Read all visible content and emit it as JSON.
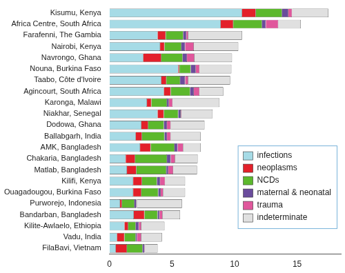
{
  "chart_data": {
    "type": "bar",
    "orientation": "horizontal",
    "stacked": true,
    "grid": false,
    "legend": "right",
    "categories": [
      "Kisumu, Kenya",
      "Africa Centre, South Africa",
      "Farafenni, The Gambia",
      "Nairobi, Kenya",
      "Navrongo, Ghana",
      "Nouna, Burkina Faso",
      "Taabo, Côte d'Ivoire",
      "Agincourt, South Africa",
      "Karonga, Malawi",
      "Niakhar, Senegal",
      "Dodowa, Ghana",
      "Ballabgarh, India",
      "AMK, Bangladesh",
      "Chakaria, Bangladesh",
      "Matlab, Bangladesh",
      "Kilifi, Kenya",
      "Ouagadougou, Burkina Faso",
      "Purworejo, Indonesia",
      "Bandarban, Bangladesh",
      "Kilite-Awlaelo, Ethiopia",
      "Vadu, India",
      "FilaBavi, Vietnam"
    ],
    "series": [
      {
        "name": "infections",
        "color": "#a6dbe6",
        "values": [
          10.6,
          8.9,
          3.85,
          4.05,
          2.7,
          5.5,
          4.15,
          4.35,
          3.0,
          3.85,
          2.55,
          2.1,
          2.45,
          1.3,
          1.4,
          1.9,
          1.9,
          0.85,
          1.95,
          1.2,
          0.6,
          0.5
        ]
      },
      {
        "name": "neoplasms",
        "color": "#e3202a",
        "values": [
          1.1,
          1.0,
          0.65,
          0.35,
          1.45,
          0.1,
          0.4,
          0.55,
          0.35,
          0.5,
          0.55,
          0.5,
          0.85,
          0.75,
          0.75,
          0.7,
          0.65,
          0.15,
          0.85,
          0.3,
          0.6,
          0.9
        ]
      },
      {
        "name": "NCDs",
        "color": "#5cb82c",
        "values": [
          2.1,
          2.3,
          1.4,
          1.35,
          1.7,
          0.9,
          1.1,
          1.55,
          1.25,
          1.15,
          1.25,
          1.8,
          1.9,
          2.55,
          2.4,
          1.2,
          1.35,
          1.0,
          1.05,
          0.6,
          0.9,
          1.25
        ]
      },
      {
        "name": "maternal & neonatal",
        "color": "#6a4c9c",
        "values": [
          0.5,
          0.3,
          0.25,
          0.3,
          0.35,
          0.4,
          0.4,
          0.3,
          0.15,
          0.2,
          0.25,
          0.2,
          0.25,
          0.3,
          0.15,
          0.25,
          0.2,
          0.15,
          0.15,
          0.25,
          0.1,
          0.15
        ]
      },
      {
        "name": "trauma",
        "color": "#e0579c",
        "values": [
          0.3,
          1.0,
          0.15,
          0.7,
          0.6,
          0.3,
          0.25,
          0.45,
          0.3,
          0.05,
          0.3,
          0.3,
          0.45,
          0.35,
          0.4,
          0.4,
          0.2,
          0.05,
          0.25,
          0.2,
          0.35,
          0.05
        ]
      },
      {
        "name": "indeterminate",
        "color": "#e0e0e0",
        "values": [
          2.9,
          1.8,
          4.3,
          3.55,
          3.0,
          2.55,
          3.35,
          1.9,
          3.75,
          2.5,
          2.7,
          2.4,
          1.4,
          1.8,
          1.9,
          1.6,
          1.75,
          3.6,
          1.4,
          1.85,
          1.65,
          1.0
        ]
      }
    ],
    "xlim": [
      0,
      18.5
    ],
    "xticks": [
      0,
      5,
      10,
      15
    ]
  }
}
